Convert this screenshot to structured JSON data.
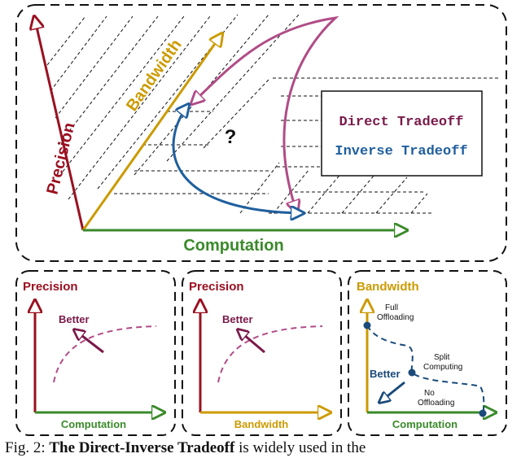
{
  "colors": {
    "precision": "#9a1020",
    "bandwidth": "#cc9a00",
    "computation": "#3a8a2a",
    "direct": "#b04c86",
    "inverse": "#1f5f9e",
    "better": "#7a1a4a",
    "better_blue": "#1a4a7a"
  },
  "main": {
    "axis_precision": "Precision",
    "axis_bandwidth": "Bandwidth",
    "axis_computation": "Computation",
    "question": "?",
    "legend_direct": "Direct Tradeoff",
    "legend_inverse": "Inverse Tradeoff"
  },
  "panels": [
    {
      "title": "Precision",
      "x_label": "Computation",
      "better": "Better"
    },
    {
      "title": "Precision",
      "x_label": "Bandwidth",
      "better": "Better"
    },
    {
      "title": "Bandwidth",
      "x_label": "Computation",
      "better": "Better",
      "point_labels": [
        "Full",
        "Offloading",
        "Split",
        "Computing",
        "No",
        "Offloading"
      ]
    }
  ],
  "caption": {
    "lead": "Fig. 2:",
    "bold": "The Direct-Inverse Tradeoff",
    "rest": "is widely used in the"
  }
}
